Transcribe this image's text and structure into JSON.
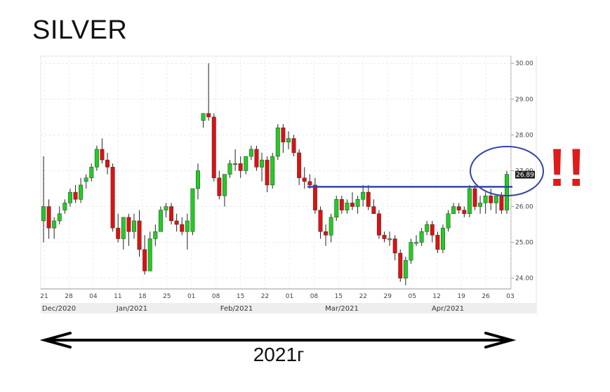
{
  "title": "SILVER",
  "year_label": "2021г",
  "exclaim": "!!",
  "colors": {
    "up": "#22cc22",
    "down": "#dd1111",
    "annotation": "#3344aa",
    "exclaim": "#e01b1b"
  },
  "chart_data": {
    "type": "candlestick",
    "ylim": [
      23.7,
      30.2
    ],
    "y_ticks": [
      "30.00",
      "29.00",
      "28.00",
      "27.00",
      "26.00",
      "25.00",
      "24.00"
    ],
    "last_price_label": "26.89",
    "resistance_level": 26.55,
    "x_tick_labels": [
      "21",
      "28",
      "04",
      "11",
      "18",
      "25",
      "01",
      "08",
      "15",
      "22",
      "01",
      "08",
      "15",
      "22",
      "29",
      "05",
      "12",
      "19",
      "26",
      "03"
    ],
    "month_labels": [
      "Dec/2020",
      "Jan/2021",
      "Feb/2021",
      "Mar/2021",
      "Apr/2021"
    ],
    "candles": [
      {
        "o": 25.6,
        "h": 27.4,
        "l": 25.0,
        "c": 26.0
      },
      {
        "o": 26.0,
        "h": 26.2,
        "l": 25.1,
        "c": 25.4
      },
      {
        "o": 25.4,
        "h": 25.7,
        "l": 25.1,
        "c": 25.6
      },
      {
        "o": 25.6,
        "h": 26.0,
        "l": 25.5,
        "c": 25.8
      },
      {
        "o": 25.9,
        "h": 26.2,
        "l": 25.8,
        "c": 26.1
      },
      {
        "o": 26.1,
        "h": 26.5,
        "l": 26.0,
        "c": 26.4
      },
      {
        "o": 26.4,
        "h": 26.6,
        "l": 26.1,
        "c": 26.2
      },
      {
        "o": 26.2,
        "h": 26.8,
        "l": 26.1,
        "c": 26.6
      },
      {
        "o": 26.7,
        "h": 26.9,
        "l": 26.5,
        "c": 26.8
      },
      {
        "o": 26.8,
        "h": 27.2,
        "l": 26.7,
        "c": 27.1
      },
      {
        "o": 27.1,
        "h": 27.7,
        "l": 27.0,
        "c": 27.6
      },
      {
        "o": 27.6,
        "h": 27.9,
        "l": 27.2,
        "c": 27.3
      },
      {
        "o": 27.3,
        "h": 27.5,
        "l": 26.9,
        "c": 27.1
      },
      {
        "o": 27.1,
        "h": 27.2,
        "l": 25.3,
        "c": 25.4
      },
      {
        "o": 25.4,
        "h": 25.8,
        "l": 25.0,
        "c": 25.1
      },
      {
        "o": 25.1,
        "h": 25.7,
        "l": 24.8,
        "c": 25.7
      },
      {
        "o": 25.7,
        "h": 25.8,
        "l": 24.9,
        "c": 25.3
      },
      {
        "o": 25.3,
        "h": 25.8,
        "l": 25.1,
        "c": 25.6
      },
      {
        "o": 25.6,
        "h": 25.9,
        "l": 24.6,
        "c": 24.8
      },
      {
        "o": 24.8,
        "h": 25.2,
        "l": 24.1,
        "c": 24.2
      },
      {
        "o": 24.2,
        "h": 25.3,
        "l": 24.2,
        "c": 25.1
      },
      {
        "o": 25.1,
        "h": 25.5,
        "l": 24.9,
        "c": 25.3
      },
      {
        "o": 25.3,
        "h": 26.0,
        "l": 25.3,
        "c": 25.9
      },
      {
        "o": 25.9,
        "h": 26.1,
        "l": 25.7,
        "c": 26.0
      },
      {
        "o": 26.0,
        "h": 26.1,
        "l": 25.5,
        "c": 25.6
      },
      {
        "o": 25.6,
        "h": 25.8,
        "l": 25.3,
        "c": 25.5
      },
      {
        "o": 25.5,
        "h": 25.7,
        "l": 25.2,
        "c": 25.3
      },
      {
        "o": 25.3,
        "h": 25.8,
        "l": 24.8,
        "c": 25.6
      },
      {
        "o": 25.3,
        "h": 26.5,
        "l": 25.2,
        "c": 26.5
      },
      {
        "o": 26.5,
        "h": 27.2,
        "l": 26.2,
        "c": 27.0
      },
      {
        "o": 28.4,
        "h": 28.6,
        "l": 28.2,
        "c": 28.6
      },
      {
        "o": 28.6,
        "h": 30.0,
        "l": 28.4,
        "c": 28.5
      },
      {
        "o": 28.5,
        "h": 28.6,
        "l": 26.7,
        "c": 26.8
      },
      {
        "o": 26.8,
        "h": 27.0,
        "l": 26.2,
        "c": 26.3
      },
      {
        "o": 26.3,
        "h": 26.9,
        "l": 26.0,
        "c": 26.9
      },
      {
        "o": 26.9,
        "h": 27.3,
        "l": 26.8,
        "c": 27.2
      },
      {
        "o": 27.2,
        "h": 27.6,
        "l": 27.0,
        "c": 27.2
      },
      {
        "o": 27.2,
        "h": 27.4,
        "l": 26.8,
        "c": 27.0
      },
      {
        "o": 27.0,
        "h": 27.4,
        "l": 26.9,
        "c": 27.4
      },
      {
        "o": 27.4,
        "h": 27.7,
        "l": 27.3,
        "c": 27.6
      },
      {
        "o": 27.6,
        "h": 27.7,
        "l": 27.0,
        "c": 27.1
      },
      {
        "o": 27.1,
        "h": 27.5,
        "l": 26.7,
        "c": 27.3
      },
      {
        "o": 27.3,
        "h": 27.4,
        "l": 26.4,
        "c": 26.6
      },
      {
        "o": 26.6,
        "h": 27.5,
        "l": 26.5,
        "c": 27.4
      },
      {
        "o": 27.4,
        "h": 28.3,
        "l": 27.3,
        "c": 28.2
      },
      {
        "o": 28.2,
        "h": 28.3,
        "l": 27.5,
        "c": 27.8
      },
      {
        "o": 27.8,
        "h": 28.1,
        "l": 27.6,
        "c": 27.9
      },
      {
        "o": 27.9,
        "h": 28.0,
        "l": 27.4,
        "c": 27.5
      },
      {
        "o": 27.5,
        "h": 27.6,
        "l": 26.6,
        "c": 26.8
      },
      {
        "o": 26.8,
        "h": 27.1,
        "l": 26.5,
        "c": 26.7
      },
      {
        "o": 26.7,
        "h": 26.9,
        "l": 26.5,
        "c": 26.6
      },
      {
        "o": 26.6,
        "h": 26.8,
        "l": 25.8,
        "c": 25.9
      },
      {
        "o": 25.9,
        "h": 26.0,
        "l": 25.1,
        "c": 25.3
      },
      {
        "o": 25.3,
        "h": 25.5,
        "l": 24.9,
        "c": 25.2
      },
      {
        "o": 25.2,
        "h": 25.8,
        "l": 25.0,
        "c": 25.7
      },
      {
        "o": 25.7,
        "h": 26.3,
        "l": 25.6,
        "c": 26.2
      },
      {
        "o": 26.2,
        "h": 26.3,
        "l": 25.8,
        "c": 25.9
      },
      {
        "o": 25.9,
        "h": 26.2,
        "l": 25.8,
        "c": 26.1
      },
      {
        "o": 26.1,
        "h": 26.4,
        "l": 25.9,
        "c": 26.0
      },
      {
        "o": 26.0,
        "h": 26.3,
        "l": 25.8,
        "c": 26.2
      },
      {
        "o": 26.2,
        "h": 26.6,
        "l": 26.0,
        "c": 26.4
      },
      {
        "o": 26.4,
        "h": 26.6,
        "l": 25.9,
        "c": 26.0
      },
      {
        "o": 26.0,
        "h": 26.2,
        "l": 25.8,
        "c": 25.8
      },
      {
        "o": 25.8,
        "h": 25.9,
        "l": 25.1,
        "c": 25.2
      },
      {
        "o": 25.2,
        "h": 25.3,
        "l": 25.0,
        "c": 25.1
      },
      {
        "o": 25.1,
        "h": 25.3,
        "l": 24.9,
        "c": 25.1
      },
      {
        "o": 25.1,
        "h": 25.2,
        "l": 24.5,
        "c": 24.7
      },
      {
        "o": 24.7,
        "h": 24.8,
        "l": 23.9,
        "c": 24.0
      },
      {
        "o": 24.0,
        "h": 24.6,
        "l": 23.8,
        "c": 24.5
      },
      {
        "o": 24.5,
        "h": 25.1,
        "l": 24.4,
        "c": 25.0
      },
      {
        "o": 25.0,
        "h": 25.2,
        "l": 24.9,
        "c": 25.0
      },
      {
        "o": 25.0,
        "h": 25.4,
        "l": 24.9,
        "c": 25.3
      },
      {
        "o": 25.3,
        "h": 25.6,
        "l": 25.2,
        "c": 25.5
      },
      {
        "o": 25.5,
        "h": 25.6,
        "l": 25.0,
        "c": 25.2
      },
      {
        "o": 25.2,
        "h": 25.3,
        "l": 24.7,
        "c": 24.8
      },
      {
        "o": 24.8,
        "h": 25.5,
        "l": 24.7,
        "c": 25.4
      },
      {
        "o": 25.4,
        "h": 25.9,
        "l": 25.3,
        "c": 25.8
      },
      {
        "o": 25.8,
        "h": 26.1,
        "l": 25.8,
        "c": 26.0
      },
      {
        "o": 26.0,
        "h": 26.1,
        "l": 25.8,
        "c": 25.9
      },
      {
        "o": 25.9,
        "h": 26.0,
        "l": 25.7,
        "c": 25.8
      },
      {
        "o": 25.8,
        "h": 26.6,
        "l": 25.7,
        "c": 26.5
      },
      {
        "o": 26.5,
        "h": 26.6,
        "l": 25.9,
        "c": 26.0
      },
      {
        "o": 26.0,
        "h": 26.3,
        "l": 25.8,
        "c": 26.1
      },
      {
        "o": 26.1,
        "h": 26.4,
        "l": 25.8,
        "c": 26.3
      },
      {
        "o": 26.3,
        "h": 26.5,
        "l": 25.9,
        "c": 26.1
      },
      {
        "o": 26.1,
        "h": 26.3,
        "l": 25.8,
        "c": 26.3
      },
      {
        "o": 26.3,
        "h": 26.4,
        "l": 25.8,
        "c": 25.9
      },
      {
        "o": 25.9,
        "h": 27.0,
        "l": 25.8,
        "c": 26.9
      }
    ]
  }
}
